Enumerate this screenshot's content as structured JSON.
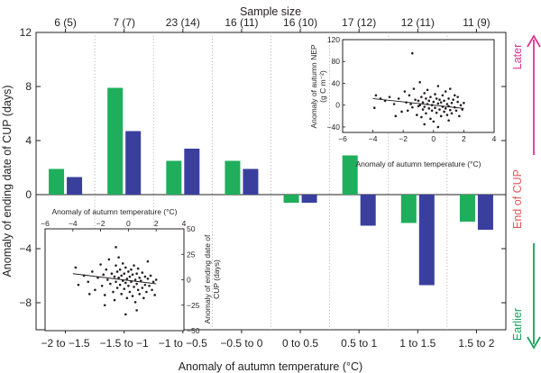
{
  "chart_data": [
    {
      "type": "bar",
      "title": "",
      "top_axis_label": "Sample size",
      "sample_sizes": [
        "6 (5)",
        "7 (7)",
        "23 (14)",
        "16 (11)",
        "16 (10)",
        "17 (12)",
        "12 (11)",
        "11 (9)"
      ],
      "categories": [
        "−2 to −1.5",
        "−1.5 to −1",
        "−1 to −0.5",
        "−0.5 to 0",
        "0 to 0.5",
        "0.5 to 1",
        "1 to 1.5",
        "1.5 to 2"
      ],
      "xlabel": "Anomaly of autumn temperature (°C)",
      "ylabel": "Anomaly of ending date of CUP (days)",
      "ylim": [
        -10,
        12
      ],
      "yticks": [
        -8,
        -4,
        0,
        4,
        8,
        12
      ],
      "ytick_labels": [
        "−8",
        "−4",
        "0",
        "4",
        "8",
        "12"
      ],
      "series": [
        {
          "name": "green",
          "color": "#1fae5b",
          "values": [
            1.9,
            7.9,
            2.5,
            2.5,
            -0.6,
            2.9,
            -2.1,
            -2.0
          ]
        },
        {
          "name": "blue",
          "color": "#3a3f9e",
          "values": [
            1.3,
            4.7,
            3.4,
            1.9,
            -0.6,
            -2.3,
            -6.7,
            -2.6
          ]
        }
      ]
    },
    {
      "type": "scatter",
      "xlabel": "Anomaly of autumn temperature (°C)",
      "ylabel": "Anomaly of autumn NEP (g C m⁻²)",
      "ylabel_line1": "Anomaly of autumn NEP",
      "ylabel_line2": "(g C m⁻²)",
      "xlim": [
        -6,
        4
      ],
      "ylim": [
        -50,
        120
      ],
      "xticks": [
        -6,
        -4,
        -2,
        0,
        2,
        4
      ],
      "xtick_labels": [
        "−6",
        "−4",
        "−2",
        "0",
        "2",
        "4"
      ],
      "yticks": [
        -40,
        0,
        40,
        80,
        120
      ],
      "ytick_labels": [
        "−40",
        "0",
        "40",
        "80",
        "120"
      ],
      "trend_line": {
        "x": [
          -4,
          2
        ],
        "y": [
          12,
          -6
        ]
      },
      "points": [
        [
          -3.8,
          18
        ],
        [
          -3.9,
          -5
        ],
        [
          -3.5,
          12
        ],
        [
          -3.2,
          8
        ],
        [
          -2.9,
          15
        ],
        [
          -2.6,
          2
        ],
        [
          -2.3,
          12
        ],
        [
          -2.1,
          -12
        ],
        [
          -1.9,
          25
        ],
        [
          -1.8,
          5
        ],
        [
          -1.7,
          -10
        ],
        [
          -1.6,
          18
        ],
        [
          -1.5,
          2
        ],
        [
          -1.4,
          -4
        ],
        [
          -1.3,
          30
        ],
        [
          -1.2,
          10
        ],
        [
          -1.1,
          -18
        ],
        [
          -1.0,
          8
        ],
        [
          -1.0,
          -2
        ],
        [
          -0.9,
          42
        ],
        [
          -0.9,
          0
        ],
        [
          -0.8,
          15
        ],
        [
          -0.8,
          -22
        ],
        [
          -0.7,
          5
        ],
        [
          -0.7,
          -8
        ],
        [
          -0.6,
          22
        ],
        [
          -0.6,
          -3
        ],
        [
          -0.5,
          12
        ],
        [
          -0.5,
          -15
        ],
        [
          -0.4,
          2
        ],
        [
          -0.4,
          28
        ],
        [
          -0.3,
          -6
        ],
        [
          -0.3,
          8
        ],
        [
          -0.2,
          -25
        ],
        [
          -0.2,
          15
        ],
        [
          -0.1,
          0
        ],
        [
          -0.1,
          -10
        ],
        [
          0.0,
          6
        ],
        [
          0.0,
          -30
        ],
        [
          0.1,
          20
        ],
        [
          0.1,
          -5
        ],
        [
          0.2,
          12
        ],
        [
          0.2,
          -14
        ],
        [
          0.3,
          3
        ],
        [
          0.3,
          35
        ],
        [
          0.4,
          -8
        ],
        [
          0.4,
          10
        ],
        [
          0.5,
          -20
        ],
        [
          0.5,
          5
        ],
        [
          0.6,
          18
        ],
        [
          0.6,
          -3
        ],
        [
          0.7,
          -12
        ],
        [
          0.7,
          8
        ],
        [
          0.8,
          25
        ],
        [
          0.8,
          -6
        ],
        [
          0.9,
          2
        ],
        [
          0.9,
          -18
        ],
        [
          1.0,
          12
        ],
        [
          1.0,
          -2
        ],
        [
          1.1,
          -9
        ],
        [
          1.1,
          30
        ],
        [
          1.2,
          4
        ],
        [
          1.2,
          -15
        ],
        [
          1.3,
          10
        ],
        [
          1.4,
          -4
        ],
        [
          1.4,
          18
        ],
        [
          1.5,
          -10
        ],
        [
          1.6,
          6
        ],
        [
          1.7,
          -20
        ],
        [
          1.8,
          0
        ],
        [
          1.9,
          -8
        ],
        [
          2.0,
          4
        ],
        [
          -1.4,
          95
        ],
        [
          0.3,
          -40
        ],
        [
          -0.6,
          -35
        ],
        [
          1.0,
          -28
        ],
        [
          -2.5,
          -20
        ],
        [
          1.6,
          15
        ]
      ]
    },
    {
      "type": "scatter",
      "xlabel": "Anomaly of autumn temperature (°C)",
      "ylabel": "Anomaly of ending date of CUP (days)",
      "ylabel_line1": "Anomaly of ending date of",
      "ylabel_line2": "CUP (days)",
      "xlim": [
        -6,
        4
      ],
      "ylim": [
        -50,
        50
      ],
      "xticks": [
        -6,
        -4,
        -2,
        0,
        2,
        4
      ],
      "xtick_labels": [
        "−6",
        "−4",
        "−2",
        "0",
        "2",
        "4"
      ],
      "yticks": [
        -50,
        -25,
        0,
        25,
        50
      ],
      "ytick_labels": [
        "−50",
        "−25",
        "0",
        "25",
        "50"
      ],
      "trend_line": {
        "x": [
          -4,
          2
        ],
        "y": [
          6,
          -4
        ]
      },
      "points": [
        [
          -3.8,
          12
        ],
        [
          -3.6,
          -5
        ],
        [
          -3.2,
          4
        ],
        [
          -2.9,
          -2
        ],
        [
          -2.6,
          8
        ],
        [
          -2.4,
          -10
        ],
        [
          -2.2,
          2
        ],
        [
          -2.0,
          15
        ],
        [
          -1.9,
          -6
        ],
        [
          -1.8,
          5
        ],
        [
          -1.7,
          -15
        ],
        [
          -1.6,
          10
        ],
        [
          -1.5,
          0
        ],
        [
          -1.4,
          20
        ],
        [
          -1.3,
          -4
        ],
        [
          -1.2,
          6
        ],
        [
          -1.1,
          -12
        ],
        [
          -1.0,
          3
        ],
        [
          -1.0,
          -20
        ],
        [
          -0.9,
          14
        ],
        [
          -0.9,
          -2
        ],
        [
          -0.8,
          8
        ],
        [
          -0.8,
          -8
        ],
        [
          -0.7,
          2
        ],
        [
          -0.7,
          22
        ],
        [
          -0.6,
          -5
        ],
        [
          -0.6,
          10
        ],
        [
          -0.5,
          -14
        ],
        [
          -0.5,
          4
        ],
        [
          -0.4,
          -1
        ],
        [
          -0.4,
          16
        ],
        [
          -0.3,
          -9
        ],
        [
          -0.3,
          6
        ],
        [
          -0.2,
          -3
        ],
        [
          -0.2,
          12
        ],
        [
          -0.1,
          -18
        ],
        [
          -0.1,
          1
        ],
        [
          0.0,
          8
        ],
        [
          0.0,
          -6
        ],
        [
          0.1,
          3
        ],
        [
          0.1,
          -12
        ],
        [
          0.2,
          10
        ],
        [
          0.2,
          -2
        ],
        [
          0.3,
          -16
        ],
        [
          0.3,
          5
        ],
        [
          0.4,
          -7
        ],
        [
          0.4,
          14
        ],
        [
          0.5,
          0
        ],
        [
          0.5,
          -22
        ],
        [
          0.6,
          6
        ],
        [
          0.6,
          -4
        ],
        [
          0.7,
          11
        ],
        [
          0.7,
          -10
        ],
        [
          0.8,
          2
        ],
        [
          0.8,
          -14
        ],
        [
          0.9,
          -1
        ],
        [
          1.0,
          7
        ],
        [
          1.0,
          -8
        ],
        [
          1.1,
          -18
        ],
        [
          1.2,
          3
        ],
        [
          1.2,
          -5
        ],
        [
          1.3,
          -12
        ],
        [
          1.4,
          1
        ],
        [
          1.5,
          -6
        ],
        [
          1.6,
          4
        ],
        [
          1.7,
          -10
        ],
        [
          1.8,
          -2
        ],
        [
          1.9,
          -15
        ],
        [
          2.0,
          0
        ],
        [
          -0.9,
          32
        ],
        [
          -0.2,
          -34
        ],
        [
          0.6,
          -30
        ],
        [
          -1.7,
          -25
        ],
        [
          1.4,
          18
        ],
        [
          -2.8,
          -14
        ]
      ]
    }
  ],
  "side_labels": {
    "middle": "End of CUP",
    "later": "Later",
    "earlier": "Earlier"
  },
  "colors": {
    "green": "#1fae5b",
    "blue": "#3a3f9e",
    "magenta": "#e0338f",
    "red": "#e8545a",
    "arrow_green": "#17a35a"
  }
}
